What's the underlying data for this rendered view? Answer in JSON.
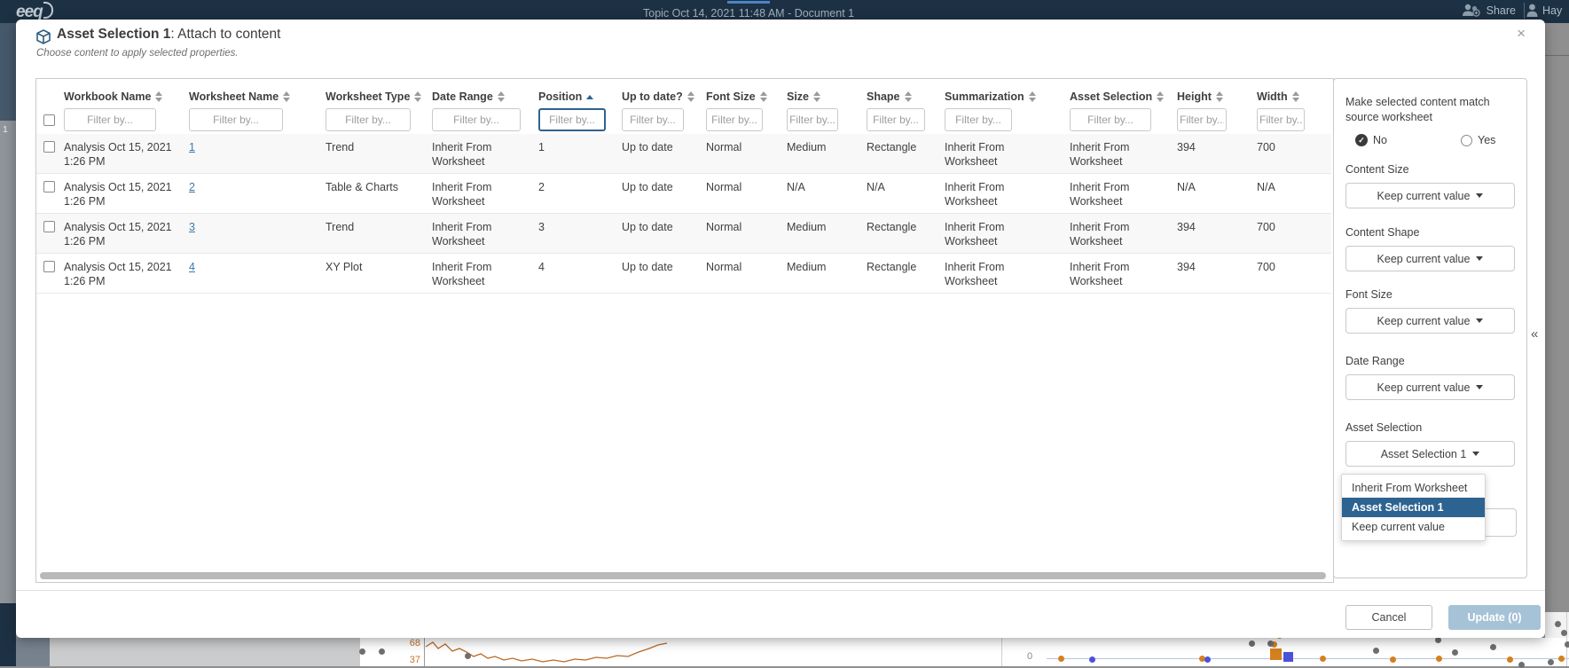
{
  "topbar": {
    "logo": "eeq",
    "document_title": "Topic Oct 14, 2021 11:48 AM - Document 1",
    "share_label": "Share",
    "user_label": "Hay"
  },
  "background": {
    "left_rail_number": "1",
    "bottom_chart": {
      "yaxis_labels": [
        "68",
        "37"
      ],
      "zero_label": "0"
    }
  },
  "modal": {
    "title_strong": "Asset Selection 1",
    "title_rest": ": Attach to content",
    "subtitle": "Choose content to apply selected properties.",
    "close_icon": "×",
    "table": {
      "filter_placeholder": "Filter by...",
      "columns": [
        {
          "label": "Workbook Name",
          "sort": "both"
        },
        {
          "label": "Worksheet Name",
          "sort": "both"
        },
        {
          "label": "Worksheet Type",
          "sort": "both"
        },
        {
          "label": "Date Range",
          "sort": "both"
        },
        {
          "label": "Position",
          "sort": "asc",
          "filter_focused": true
        },
        {
          "label": "Up to date?",
          "sort": "both"
        },
        {
          "label": "Font Size",
          "sort": "both"
        },
        {
          "label": "Size",
          "sort": "both"
        },
        {
          "label": "Shape",
          "sort": "both"
        },
        {
          "label": "Summarization",
          "sort": "both"
        },
        {
          "label": "Asset Selection",
          "sort": "both"
        },
        {
          "label": "Height",
          "sort": "both"
        },
        {
          "label": "Width",
          "sort": "both"
        }
      ],
      "rows": [
        [
          "Analysis Oct 15, 2021 1:26 PM",
          "1",
          "Trend",
          "Inherit From Worksheet",
          "1",
          "Up to date",
          "Normal",
          "Medium",
          "Rectangle",
          "Inherit From Worksheet",
          "Inherit From Worksheet",
          "394",
          "700"
        ],
        [
          "Analysis Oct 15, 2021 1:26 PM",
          "2",
          "Table & Charts",
          "Inherit From Worksheet",
          "2",
          "Up to date",
          "Normal",
          "N/A",
          "N/A",
          "Inherit From Worksheet",
          "Inherit From Worksheet",
          "N/A",
          "N/A"
        ],
        [
          "Analysis Oct 15, 2021 1:26 PM",
          "3",
          "Trend",
          "Inherit From Worksheet",
          "3",
          "Up to date",
          "Normal",
          "Medium",
          "Rectangle",
          "Inherit From Worksheet",
          "Inherit From Worksheet",
          "394",
          "700"
        ],
        [
          "Analysis Oct 15, 2021 1:26 PM",
          "4",
          "XY Plot",
          "Inherit From Worksheet",
          "4",
          "Up to date",
          "Normal",
          "Medium",
          "Rectangle",
          "Inherit From Worksheet",
          "Inherit From Worksheet",
          "394",
          "700"
        ]
      ]
    },
    "panel": {
      "match_label": "Make selected content match source worksheet",
      "radio_no": "No",
      "radio_yes": "Yes",
      "radio_selected": "No",
      "fields": [
        {
          "label": "Content Size",
          "value": "Keep current value"
        },
        {
          "label": "Content Shape",
          "value": "Keep current value"
        },
        {
          "label": "Font Size",
          "value": "Keep current value"
        },
        {
          "label": "Date Range",
          "value": "Keep current value"
        },
        {
          "label": "Asset Selection",
          "value": "Asset Selection 1",
          "open": true,
          "options": [
            "Inherit From Worksheet",
            "Asset Selection 1",
            "Keep current value"
          ],
          "selected_option": "Asset Selection 1"
        }
      ],
      "collapse_icon": "«"
    },
    "footer": {
      "cancel": "Cancel",
      "update": "Update (0)"
    }
  }
}
